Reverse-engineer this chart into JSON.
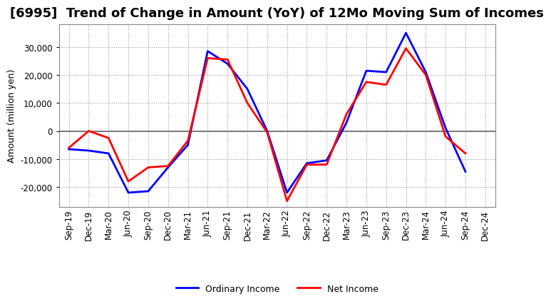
{
  "title": "[6995]  Trend of Change in Amount (YoY) of 12Mo Moving Sum of Incomes",
  "ylabel": "Amount (million yen)",
  "x_labels": [
    "Sep-19",
    "Dec-19",
    "Mar-20",
    "Jun-20",
    "Sep-20",
    "Dec-20",
    "Mar-21",
    "Jun-21",
    "Sep-21",
    "Dec-21",
    "Mar-22",
    "Jun-22",
    "Sep-22",
    "Dec-22",
    "Mar-23",
    "Jun-23",
    "Sep-23",
    "Dec-23",
    "Mar-24",
    "Jun-24",
    "Sep-24",
    "Dec-24"
  ],
  "ordinary_income": [
    -6500,
    -7000,
    -8000,
    -22000,
    -21500,
    -13000,
    -5000,
    28500,
    24000,
    15000,
    0,
    -22000,
    -11500,
    -10500,
    3000,
    21500,
    21000,
    35000,
    21000,
    1000,
    -14500,
    null
  ],
  "net_income": [
    -6000,
    0,
    -2500,
    -18000,
    -13000,
    -12500,
    -3500,
    26000,
    25500,
    10000,
    -500,
    -25000,
    -12000,
    -12000,
    6000,
    17500,
    16500,
    29500,
    20000,
    -2000,
    -8000,
    null
  ],
  "ordinary_color": "#0000FF",
  "net_color": "#FF0000",
  "ylim": [
    -27000,
    38000
  ],
  "yticks": [
    -20000,
    -10000,
    0,
    10000,
    20000,
    30000
  ],
  "background_color": "#FFFFFF",
  "grid_color": "#999999",
  "zero_line_color": "#666666",
  "title_fontsize": 13,
  "axis_fontsize": 9,
  "tick_fontsize": 8.5,
  "legend_fontsize": 9
}
